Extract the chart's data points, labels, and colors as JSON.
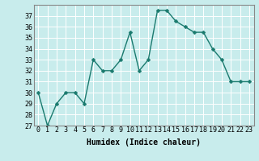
{
  "x": [
    0,
    1,
    2,
    3,
    4,
    5,
    6,
    7,
    8,
    9,
    10,
    11,
    12,
    13,
    14,
    15,
    16,
    17,
    18,
    19,
    20,
    21,
    22,
    23
  ],
  "y": [
    30,
    27,
    29,
    30,
    30,
    29,
    33,
    32,
    32,
    33,
    35.5,
    32,
    33,
    37.5,
    37.5,
    36.5,
    36,
    35.5,
    35.5,
    34,
    33,
    31,
    31,
    31
  ],
  "line_color": "#1a7a6e",
  "marker_color": "#1a7a6e",
  "bg_color": "#c8ecec",
  "grid_color": "#ffffff",
  "xlabel": "Humidex (Indice chaleur)",
  "ylim": [
    27,
    38
  ],
  "xlim": [
    -0.5,
    23.5
  ],
  "yticks": [
    27,
    28,
    29,
    30,
    31,
    32,
    33,
    34,
    35,
    36,
    37
  ],
  "xticks": [
    0,
    1,
    2,
    3,
    4,
    5,
    6,
    7,
    8,
    9,
    10,
    11,
    12,
    13,
    14,
    15,
    16,
    17,
    18,
    19,
    20,
    21,
    22,
    23
  ],
  "xlabel_fontsize": 7,
  "tick_fontsize": 6,
  "linewidth": 1.0,
  "markersize": 2.5
}
